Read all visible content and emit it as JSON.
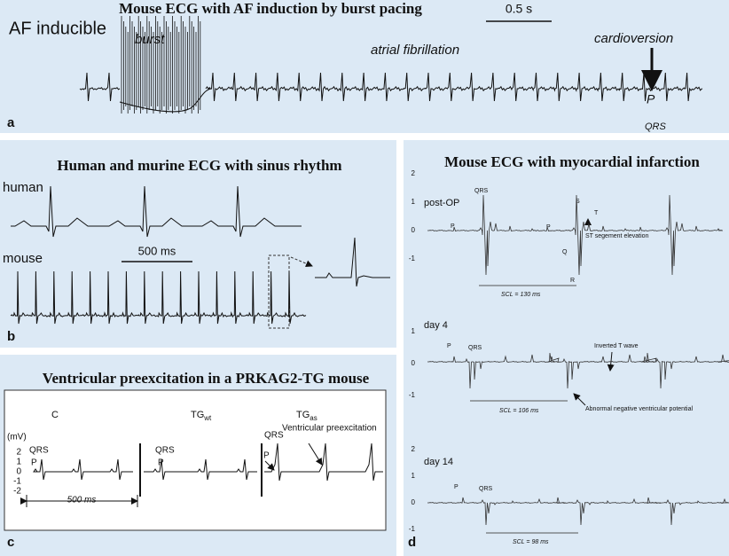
{
  "panel_a": {
    "title": "Mouse ECG with AF induction by burst pacing",
    "scale": "0.5 s",
    "condition": "AF inducible",
    "burst": "burst",
    "rhythm": "atrial fibrillation",
    "event": "cardioversion",
    "p_label": "P",
    "qrs_label": "QRS",
    "letter": "a"
  },
  "panel_b": {
    "title": "Human and murine ECG with sinus rhythm",
    "human": "human",
    "mouse": "mouse",
    "scale": "500 ms",
    "letter": "b"
  },
  "panel_c": {
    "title": "Ventricular preexcitation in a PRKAG2-TG mouse",
    "groups": [
      {
        "text": "C"
      },
      {
        "text": "TG",
        "sub": "wt"
      },
      {
        "text": "TG",
        "sub": "as"
      }
    ],
    "unit": "(mV)",
    "yticks": [
      2,
      1,
      0,
      -1,
      -2
    ],
    "qrs_labels": [
      "QRS",
      "QRS",
      "QRS"
    ],
    "p_labels": [
      "P",
      "P",
      "P"
    ],
    "annotation": "Ventricular preexcitation",
    "scale": "500 ms",
    "letter": "c"
  },
  "panel_d": {
    "title": "Mouse ECG with myocardial infarction",
    "letter": "d",
    "traces": [
      {
        "label": "post-OP",
        "yticks": [
          2,
          1,
          0,
          -1
        ],
        "annotations": [
          "QRS",
          "P",
          "P",
          "Q",
          "R",
          "S",
          "T",
          "ST segement elevation"
        ],
        "scl": "SCL = 130 ms"
      },
      {
        "label": "day 4",
        "yticks": [
          1,
          0,
          -1
        ],
        "annotations": [
          "P",
          "QRS",
          "Inverted T wave",
          "Abnormal negative ventricular potential"
        ],
        "scl": "SCL = 106 ms"
      },
      {
        "label": "day 14",
        "yticks": [
          2,
          1,
          0,
          -1
        ],
        "annotations": [
          "P",
          "QRS"
        ],
        "scl": "SCL = 98 ms"
      }
    ]
  }
}
